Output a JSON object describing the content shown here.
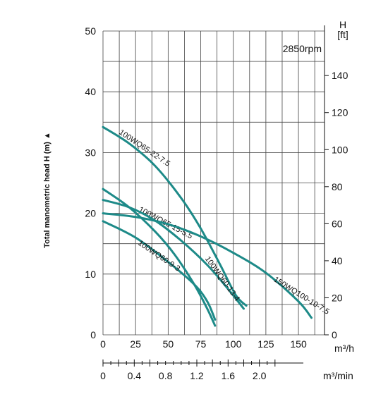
{
  "chart_data": {
    "type": "line",
    "annotation": "2850rpm",
    "ylabel": "Total manometric head H (m) ▲",
    "y_right_label_line1": "H",
    "y_right_label_line2": "[ft]",
    "xlabel_top": "m³/h",
    "xlabel_bottom": "m³/min",
    "xlim": [
      0,
      170
    ],
    "ylim": [
      0,
      50
    ],
    "x_ticks": [
      0,
      25,
      50,
      75,
      100,
      125,
      150
    ],
    "y_ticks": [
      0,
      10,
      20,
      30,
      40,
      50
    ],
    "y_right_ticks": [
      0,
      20,
      40,
      60,
      80,
      100,
      120,
      140
    ],
    "x_bottom_ticks": [
      "0",
      "0.4",
      "0.8",
      "1.2",
      "1.6",
      "2.0"
    ],
    "x_bottom_tick_values": [
      0,
      0.4,
      0.8,
      1.2,
      1.6,
      2.0
    ],
    "grid": true,
    "series": [
      {
        "name": "100WQ65-22-7.5",
        "x": [
          0,
          20,
          40,
          60,
          75,
          90,
          102,
          110
        ],
        "y": [
          34.2,
          31.5,
          27.8,
          22.5,
          17.5,
          11.5,
          6.5,
          4.8
        ]
      },
      {
        "name": "100WQ65-15-5.5",
        "x": [
          0,
          20,
          40,
          55,
          70,
          80,
          86
        ],
        "y": [
          24,
          21,
          17,
          13.2,
          8.3,
          4.3,
          1.5
        ]
      },
      {
        "name": "100WQ60-13-4",
        "x": [
          0,
          20,
          40,
          60,
          80,
          95,
          108
        ],
        "y": [
          22.2,
          21,
          18.8,
          15.5,
          11.5,
          7.8,
          4.3
        ]
      },
      {
        "name": "150WQ100-10-7.5",
        "x": [
          0,
          25,
          50,
          75,
          100,
          125,
          150,
          160
        ],
        "y": [
          20,
          19.4,
          18.2,
          16.2,
          13.5,
          10.2,
          5.5,
          2.8
        ]
      },
      {
        "name": "100WQ60-9-3",
        "x": [
          0,
          25,
          50,
          70,
          80,
          86
        ],
        "y": [
          18.7,
          16,
          12,
          8.3,
          5.5,
          2.5
        ]
      }
    ]
  }
}
